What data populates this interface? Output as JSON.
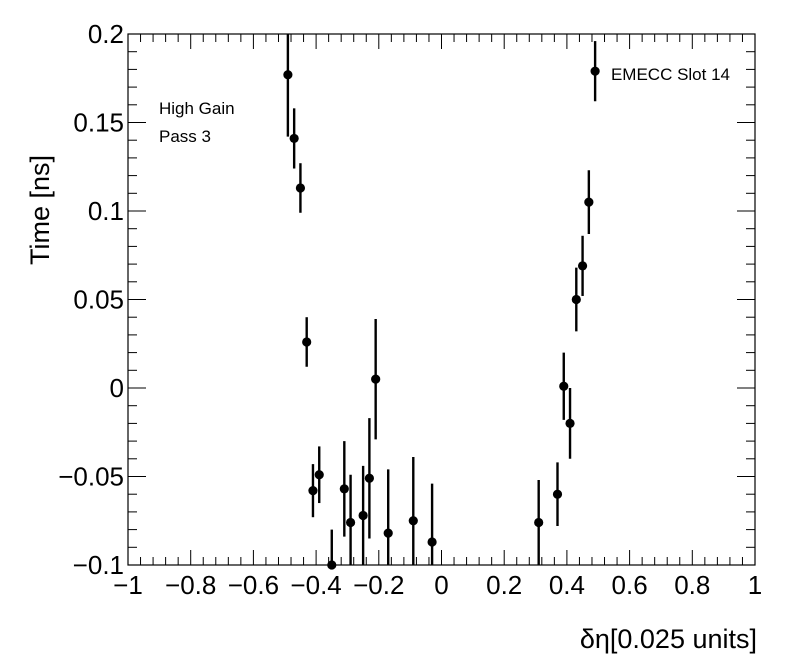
{
  "chart_data": {
    "type": "scatter",
    "xlabel": "δη[0.025 units]",
    "ylabel": "Time [ns]",
    "xlim": [
      -1,
      1
    ],
    "ylim": [
      -0.1,
      0.2
    ],
    "xticks": [
      "−1",
      "−0.8",
      "−0.6",
      "−0.4",
      "−0.2",
      "0",
      "0.2",
      "0.4",
      "0.6",
      "0.8",
      "1"
    ],
    "xtick_values": [
      -1,
      -0.8,
      -0.6,
      -0.4,
      -0.2,
      0,
      0.2,
      0.4,
      0.6,
      0.8,
      1
    ],
    "yticks": [
      "−0.1",
      "−0.05",
      "0",
      "0.05",
      "0.1",
      "0.15",
      "0.2"
    ],
    "ytick_values": [
      -0.1,
      -0.05,
      0,
      0.05,
      0.1,
      0.15,
      0.2
    ],
    "grid": false,
    "annotations": [
      "High Gain",
      "Pass 3",
      "EMECC Slot 14"
    ],
    "points": [
      {
        "x": -0.49,
        "y": 0.177,
        "err": 0.035
      },
      {
        "x": -0.47,
        "y": 0.141,
        "err": 0.017
      },
      {
        "x": -0.45,
        "y": 0.113,
        "err": 0.014
      },
      {
        "x": -0.43,
        "y": 0.026,
        "err": 0.014
      },
      {
        "x": -0.41,
        "y": -0.058,
        "err": 0.015
      },
      {
        "x": -0.39,
        "y": -0.049,
        "err": 0.016
      },
      {
        "x": -0.35,
        "y": -0.1,
        "err": 0.02
      },
      {
        "x": -0.31,
        "y": -0.057,
        "err": 0.027
      },
      {
        "x": -0.29,
        "y": -0.076,
        "err": 0.027
      },
      {
        "x": -0.25,
        "y": -0.072,
        "err": 0.028
      },
      {
        "x": -0.23,
        "y": -0.051,
        "err": 0.034
      },
      {
        "x": -0.21,
        "y": 0.005,
        "err": 0.034
      },
      {
        "x": -0.17,
        "y": -0.082,
        "err": 0.036
      },
      {
        "x": -0.09,
        "y": -0.075,
        "err": 0.036
      },
      {
        "x": -0.03,
        "y": -0.087,
        "err": 0.033
      },
      {
        "x": 0.31,
        "y": -0.076,
        "err": 0.024
      },
      {
        "x": 0.37,
        "y": -0.06,
        "err": 0.018
      },
      {
        "x": 0.39,
        "y": 0.001,
        "err": 0.019
      },
      {
        "x": 0.41,
        "y": -0.02,
        "err": 0.02
      },
      {
        "x": 0.43,
        "y": 0.05,
        "err": 0.018
      },
      {
        "x": 0.45,
        "y": 0.069,
        "err": 0.017
      },
      {
        "x": 0.47,
        "y": 0.105,
        "err": 0.018
      },
      {
        "x": 0.49,
        "y": 0.179,
        "err": 0.017
      }
    ]
  }
}
